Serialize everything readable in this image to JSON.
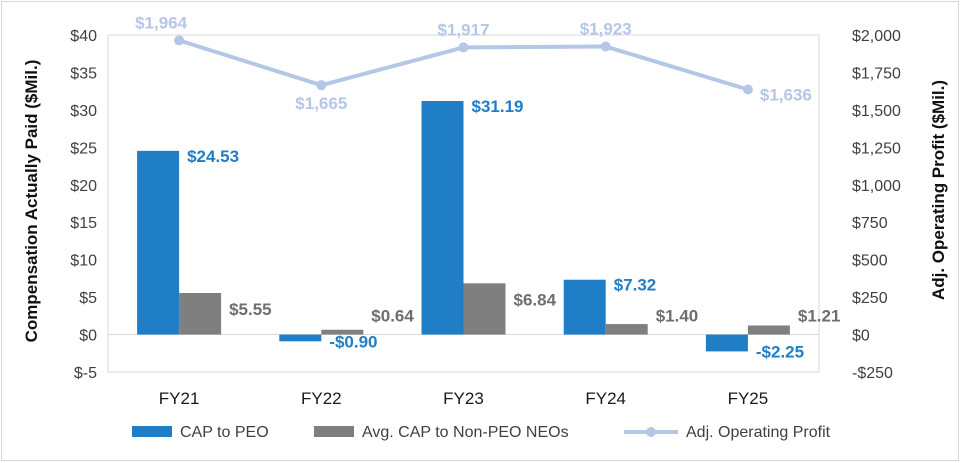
{
  "chart_data": {
    "type": "bar",
    "categories": [
      "FY21",
      "FY22",
      "FY23",
      "FY24",
      "FY25"
    ],
    "series": [
      {
        "name": "CAP to PEO",
        "kind": "bar",
        "axis": "left",
        "color": "#1f7ec6",
        "label_color": "#1f7ec6",
        "values": [
          24.53,
          -0.9,
          31.19,
          7.32,
          -2.25
        ],
        "labels": [
          "$24.53",
          "-$0.90",
          "$31.19",
          "$7.32",
          "-$2.25"
        ]
      },
      {
        "name": "Avg. CAP to Non-PEO NEOs",
        "kind": "bar",
        "axis": "left",
        "color": "#7f7f7f",
        "label_color": "#6e6e6e",
        "values": [
          5.55,
          0.64,
          6.84,
          1.4,
          1.21
        ],
        "labels": [
          "$5.55",
          "$0.64",
          "$6.84",
          "$1.40",
          "$1.21"
        ]
      },
      {
        "name": "Adj. Operating Profit",
        "kind": "line",
        "axis": "right",
        "color": "#b4c7e7",
        "label_color": "#b4c7e7",
        "values": [
          1964,
          1665,
          1917,
          1923,
          1636
        ],
        "labels": [
          "$1,964",
          "$1,665",
          "$1,917",
          "$1,923",
          "$1,636"
        ]
      }
    ],
    "ylabel": "Compensation Actually Paid ($Mil.)",
    "y2label": "Adj. Operating Profit ($Mil.)",
    "ylim": [
      -5,
      40
    ],
    "y2lim": [
      -250,
      2000
    ],
    "yticks": [
      {
        "v": 40,
        "t": "$40"
      },
      {
        "v": 35,
        "t": "$35"
      },
      {
        "v": 30,
        "t": "$30"
      },
      {
        "v": 25,
        "t": "$25"
      },
      {
        "v": 20,
        "t": "$20"
      },
      {
        "v": 15,
        "t": "$15"
      },
      {
        "v": 10,
        "t": "$10"
      },
      {
        "v": 5,
        "t": "$5"
      },
      {
        "v": 0,
        "t": "$0"
      },
      {
        "v": -5,
        "t": "$-5"
      }
    ],
    "y2ticks": [
      {
        "v": 2000,
        "t": "$2,000"
      },
      {
        "v": 1750,
        "t": "$1,750"
      },
      {
        "v": 1500,
        "t": "$1,500"
      },
      {
        "v": 1250,
        "t": "$1,250"
      },
      {
        "v": 1000,
        "t": "$1,000"
      },
      {
        "v": 750,
        "t": "$750"
      },
      {
        "v": 500,
        "t": "$500"
      },
      {
        "v": 250,
        "t": "$250"
      },
      {
        "v": 0,
        "t": "$0"
      },
      {
        "v": -250,
        "t": "-$250"
      }
    ],
    "grid": false,
    "legend": "bottom"
  }
}
